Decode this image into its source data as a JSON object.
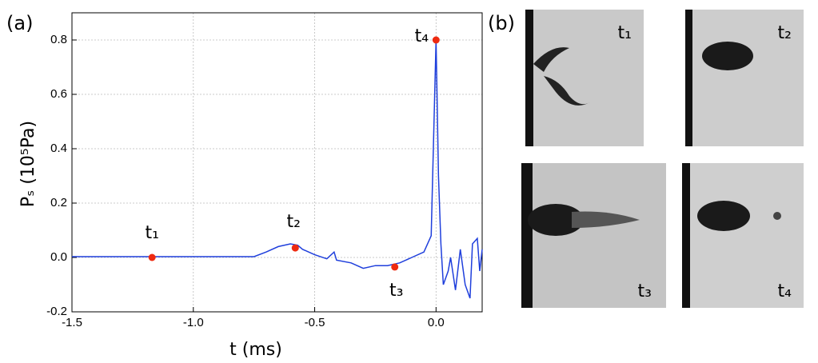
{
  "chart_data": {
    "type": "line",
    "panel_label": "(a)",
    "xlabel": "t (ms)",
    "ylabel": "Pₛ (10⁵Pa)",
    "xlim": [
      -1.5,
      0.19
    ],
    "ylim": [
      -0.2,
      0.9
    ],
    "xticks": [
      -1.5,
      {
        "value": -1.0,
        "label": "-1.0"
      },
      -0.5,
      {
        "value": 0,
        "label": "0.0"
      }
    ],
    "yticks": [
      -0.2,
      {
        "value": 0,
        "label": "0.0"
      },
      0.2,
      0.4,
      0.6,
      0.8
    ],
    "grid": true,
    "x": [
      -1.5,
      -0.75,
      -0.7,
      -0.65,
      -0.6,
      -0.57,
      -0.55,
      -0.5,
      -0.45,
      -0.42,
      -0.41,
      -0.35,
      -0.3,
      -0.25,
      -0.2,
      -0.15,
      -0.1,
      -0.05,
      -0.02,
      0,
      0.01,
      0.02,
      0.03,
      0.05,
      0.06,
      0.08,
      0.1,
      0.12,
      0.14,
      0.15,
      0.17,
      0.18,
      0.19
    ],
    "series": [
      {
        "name": "Ps",
        "color": "#1f3fdc",
        "values": [
          0.003,
          0.003,
          0.02,
          0.04,
          0.05,
          0.045,
          0.03,
          0.01,
          -0.005,
          0.02,
          -0.01,
          -0.02,
          -0.04,
          -0.03,
          -0.03,
          -0.02,
          0.0,
          0.02,
          0.08,
          0.8,
          0.3,
          0.05,
          -0.1,
          -0.05,
          0.0,
          -0.12,
          0.03,
          -0.1,
          -0.15,
          0.05,
          0.07,
          -0.05,
          0.03
        ]
      }
    ],
    "points": {
      "color": "#ee2a10",
      "labels": [
        "t₁",
        "t₂",
        "t₃",
        "t₄"
      ],
      "x": [
        -1.17,
        -0.58,
        -0.17,
        0.0
      ],
      "y": [
        0.0,
        0.035,
        -0.035,
        0.8
      ]
    }
  },
  "images": {
    "panel_label": "(b)",
    "labels": [
      "t₁",
      "t₂",
      "t₃",
      "t₄"
    ]
  }
}
